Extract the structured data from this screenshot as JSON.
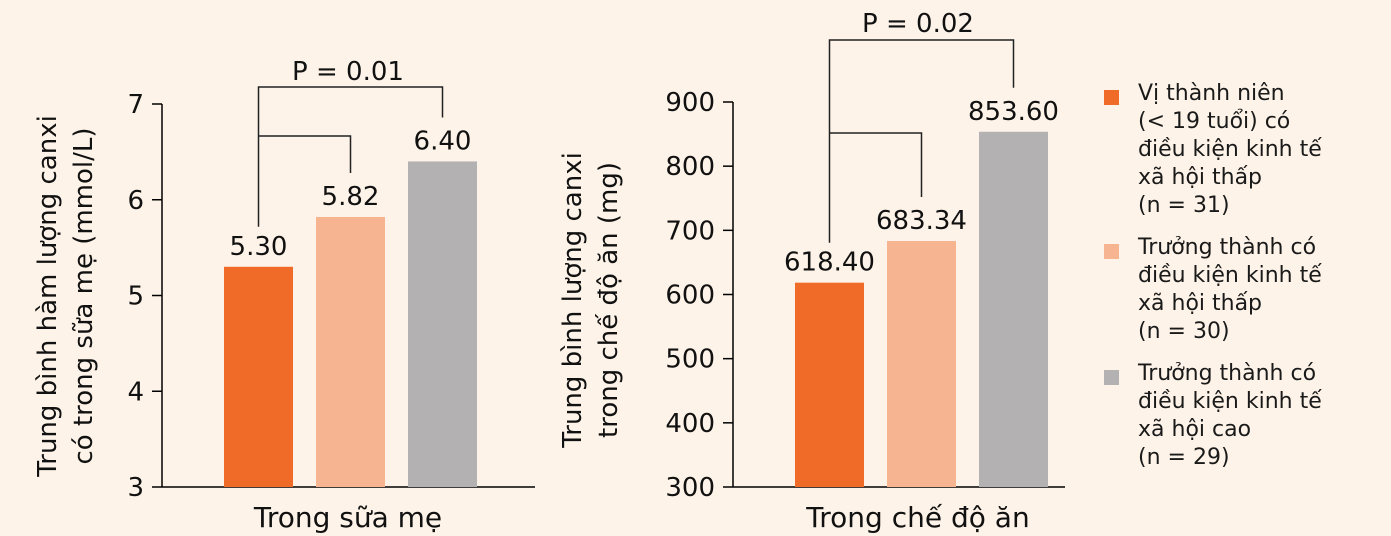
{
  "colors": {
    "background": "#fdf3e8",
    "adolescent_low": "#f06a28",
    "adult_low": "#f6b491",
    "adult_high": "#b3b1b2",
    "axis": "#000000"
  },
  "legend": [
    {
      "label": "Vị thành niên\n(< 19 tuổi) có\nđiều kiện kinh tế\nxã hội thấp\n(n = 31)",
      "color": "#f06a28"
    },
    {
      "label": "Trưởng thành có\nđiều kiện kinh tế\nxã hội thấp\n(n = 30)",
      "color": "#f6b491"
    },
    {
      "label": "Trưởng thành có\nđiều kiện kinh tế\nxã hội cao\n(n = 29)",
      "color": "#b3b1b2"
    }
  ],
  "chart_data": [
    {
      "type": "bar",
      "ylabel": "Trung bình hàm lượng canxi\ncó trong sữa mẹ (mmol/L)",
      "xlabel": "Trong sữa mẹ",
      "ylim": [
        3,
        7
      ],
      "yticks": [
        3,
        4,
        5,
        6,
        7
      ],
      "values": [
        5.3,
        5.82,
        6.4
      ],
      "value_labels": [
        "5.30",
        "5.82",
        "6.40"
      ],
      "colors": [
        "#f06a28",
        "#f6b491",
        "#b3b1b2"
      ],
      "significance": {
        "text": "P = 0.01",
        "brackets": [
          [
            0,
            1
          ],
          [
            0,
            2
          ]
        ]
      }
    },
    {
      "type": "bar",
      "ylabel": "Trung bình lượng canxi\ntrong chế độ ăn (mg)",
      "xlabel": "Trong chế độ ăn",
      "ylim": [
        300,
        900
      ],
      "yticks": [
        300,
        400,
        500,
        600,
        700,
        800,
        900
      ],
      "values": [
        618.4,
        683.34,
        853.6
      ],
      "value_labels": [
        "618.40",
        "683.34",
        "853.60"
      ],
      "colors": [
        "#f06a28",
        "#f6b491",
        "#b3b1b2"
      ],
      "significance": {
        "text": "P = 0.02",
        "brackets": [
          [
            0,
            1
          ],
          [
            0,
            2
          ]
        ]
      }
    }
  ]
}
